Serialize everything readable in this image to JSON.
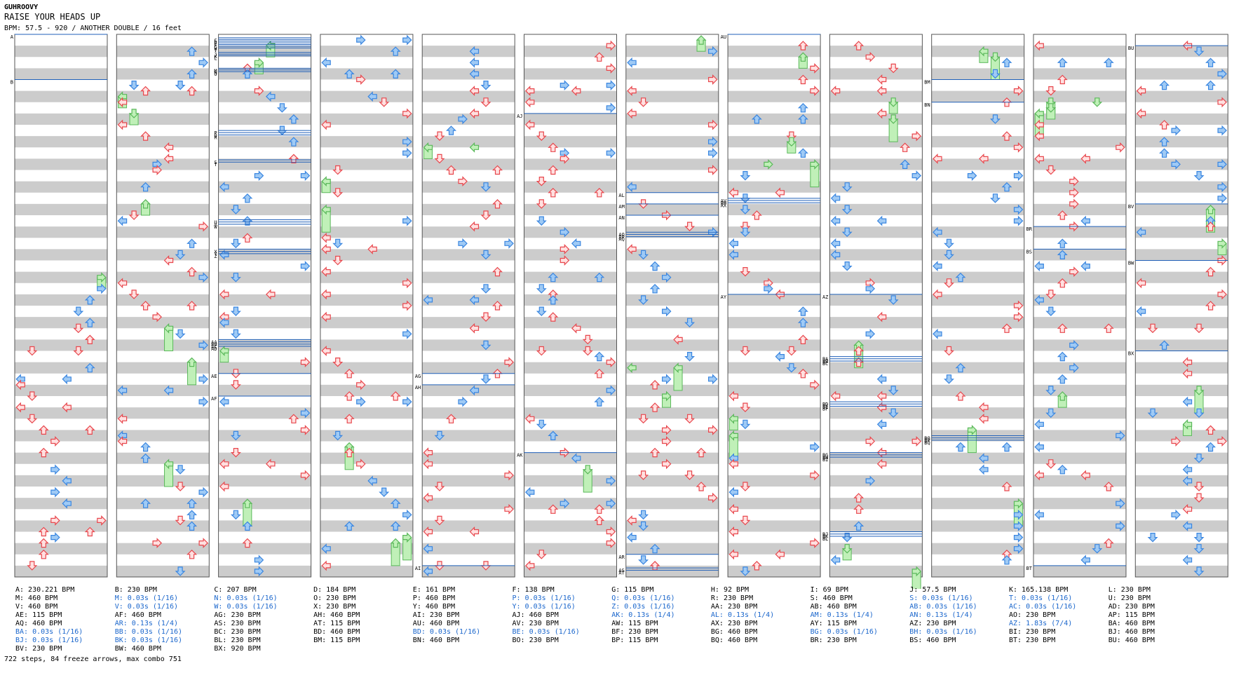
{
  "header": {
    "artist": "GUHROOVY",
    "song": "RAISE YOUR HEADS UP",
    "meta": "BPM: 57.5 - 920 / ANOTHER DOUBLE / 16 feet"
  },
  "colors": {
    "panel_bg": "#ffffff",
    "stripe": "#cccccc",
    "border": "#555555",
    "red": "#e8474d",
    "red_fill": "#ffe0e0",
    "blue": "#3a86e0",
    "blue_fill": "#9fcaf5",
    "pink": "#c060c0",
    "pink_fill": "#f8c4f8",
    "green": "#5ab85a",
    "green_fill": "#c0f0b8",
    "bpm_line": "#1f5fb8",
    "stop_text": "#1a66cc"
  },
  "icons": {
    "arrow_left": "left-arrow-icon",
    "arrow_down": "down-arrow-icon",
    "arrow_up": "up-arrow-icon",
    "arrow_right": "right-arrow-icon",
    "freeze": "freeze-arrow-icon"
  },
  "chart": {
    "columns": 12,
    "measures_per_column": 12,
    "seed": 751,
    "markers": [
      {
        "label": "A",
        "column": 0,
        "beat": 0
      },
      {
        "label": "B",
        "column": 0,
        "beat": 4
      },
      {
        "label": "C",
        "column": 2,
        "beat": 0.3
      },
      {
        "label": "D",
        "column": 2,
        "beat": 0.45
      },
      {
        "label": "E",
        "column": 2,
        "beat": 0.6
      },
      {
        "label": "F",
        "column": 2,
        "beat": 0.75
      },
      {
        "label": "G",
        "column": 2,
        "beat": 0.9
      },
      {
        "label": "H",
        "column": 2,
        "beat": 1.05
      },
      {
        "label": "I",
        "column": 2,
        "beat": 1.2
      },
      {
        "label": "J",
        "column": 2,
        "beat": 1.6
      },
      {
        "label": "K",
        "column": 2,
        "beat": 1.75
      },
      {
        "label": "L",
        "column": 2,
        "beat": 1.9
      },
      {
        "label": "M",
        "column": 2,
        "beat": 3
      },
      {
        "label": "N",
        "column": 2,
        "beat": 3.15
      },
      {
        "label": "O",
        "column": 2,
        "beat": 3.3
      },
      {
        "label": "P",
        "column": 2,
        "beat": 8.5
      },
      {
        "label": "Q",
        "column": 2,
        "beat": 8.7
      },
      {
        "label": "R",
        "column": 2,
        "beat": 8.9
      },
      {
        "label": "S",
        "column": 2,
        "beat": 11.1
      },
      {
        "label": "T",
        "column": 2,
        "beat": 11.3
      },
      {
        "label": "U",
        "column": 2,
        "beat": 16.4
      },
      {
        "label": "V",
        "column": 2,
        "beat": 16.6
      },
      {
        "label": "W",
        "column": 2,
        "beat": 16.8
      },
      {
        "label": "X",
        "column": 2,
        "beat": 19
      },
      {
        "label": "Y",
        "column": 2,
        "beat": 19.2
      },
      {
        "label": "Z",
        "column": 2,
        "beat": 19.4
      },
      {
        "label": "AA",
        "column": 2,
        "beat": 27
      },
      {
        "label": "AB",
        "column": 2,
        "beat": 27.2
      },
      {
        "label": "AC",
        "column": 2,
        "beat": 27.4
      },
      {
        "label": "AD",
        "column": 2,
        "beat": 27.6
      },
      {
        "label": "AE",
        "column": 2,
        "beat": 30
      },
      {
        "label": "AF",
        "column": 2,
        "beat": 32
      },
      {
        "label": "AG",
        "column": 4,
        "beat": 30
      },
      {
        "label": "AH",
        "column": 4,
        "beat": 31
      },
      {
        "label": "AI",
        "column": 4,
        "beat": 47
      },
      {
        "label": "AJ",
        "column": 5,
        "beat": 7
      },
      {
        "label": "AK",
        "column": 5,
        "beat": 37
      },
      {
        "label": "AL",
        "column": 6,
        "beat": 14
      },
      {
        "label": "AM",
        "column": 6,
        "beat": 15
      },
      {
        "label": "AN",
        "column": 6,
        "beat": 16
      },
      {
        "label": "AO",
        "column": 6,
        "beat": 17.5
      },
      {
        "label": "AP",
        "column": 6,
        "beat": 17.7
      },
      {
        "label": "AQ",
        "column": 6,
        "beat": 17.9
      },
      {
        "label": "AR",
        "column": 6,
        "beat": 46
      },
      {
        "label": "AS",
        "column": 6,
        "beat": 47.2
      },
      {
        "label": "AT",
        "column": 6,
        "beat": 47.4
      },
      {
        "label": "AU",
        "column": 7,
        "beat": 0
      },
      {
        "label": "AV",
        "column": 7,
        "beat": 14.5
      },
      {
        "label": "AW",
        "column": 7,
        "beat": 14.7
      },
      {
        "label": "AX",
        "column": 7,
        "beat": 14.9
      },
      {
        "label": "AY",
        "column": 7,
        "beat": 23
      },
      {
        "label": "AZ",
        "column": 8,
        "beat": 23
      },
      {
        "label": "BA",
        "column": 8,
        "beat": 28.5
      },
      {
        "label": "BB",
        "column": 8,
        "beat": 28.7
      },
      {
        "label": "BC",
        "column": 8,
        "beat": 28.9
      },
      {
        "label": "BD",
        "column": 8,
        "beat": 32.5
      },
      {
        "label": "BE",
        "column": 8,
        "beat": 32.7
      },
      {
        "label": "BF",
        "column": 8,
        "beat": 32.9
      },
      {
        "label": "BG",
        "column": 8,
        "beat": 37
      },
      {
        "label": "BH",
        "column": 8,
        "beat": 37.2
      },
      {
        "label": "BI",
        "column": 8,
        "beat": 37.4
      },
      {
        "label": "BJ",
        "column": 8,
        "beat": 44
      },
      {
        "label": "BK",
        "column": 8,
        "beat": 44.2
      },
      {
        "label": "BL",
        "column": 8,
        "beat": 44.4
      },
      {
        "label": "BM",
        "column": 9,
        "beat": 4
      },
      {
        "label": "BN",
        "column": 9,
        "beat": 6
      },
      {
        "label": "BO",
        "column": 9,
        "beat": 35.5
      },
      {
        "label": "BP",
        "column": 9,
        "beat": 35.7
      },
      {
        "label": "BQ",
        "column": 9,
        "beat": 35.9
      },
      {
        "label": "BR",
        "column": 10,
        "beat": 17
      },
      {
        "label": "BS",
        "column": 10,
        "beat": 19
      },
      {
        "label": "BT",
        "column": 10,
        "beat": 47
      },
      {
        "label": "BU",
        "column": 11,
        "beat": 1
      },
      {
        "label": "BV",
        "column": 11,
        "beat": 15
      },
      {
        "label": "BW",
        "column": 11,
        "beat": 20
      },
      {
        "label": "BX",
        "column": 11,
        "beat": 28
      }
    ]
  },
  "legend": [
    [
      "A: 230.221 BPM",
      "M: 460 BPM",
      "V: 460 BPM",
      "AE: 115 BPM",
      "AQ: 460 BPM",
      "BA: 0.03s (1/16)",
      "BJ: 0.03s (1/16)",
      "BV: 230 BPM"
    ],
    [
      "B: 230 BPM",
      "M: 0.03s (1/16)",
      "V: 0.03s (1/16)",
      "AF: 460 BPM",
      "AR: 0.13s (1/4)",
      "BB: 0.03s (1/16)",
      "BK: 0.03s (1/16)",
      "BW: 460 BPM"
    ],
    [
      "C: 207 BPM",
      "N: 0.03s (1/16)",
      "W: 0.03s (1/16)",
      "AG: 230 BPM",
      "AS: 230 BPM",
      "BC: 230 BPM",
      "BL: 230 BPM",
      "BX: 920 BPM"
    ],
    [
      "D: 184 BPM",
      "O: 230 BPM",
      "X: 230 BPM",
      "AH: 460 BPM",
      "AT: 115 BPM",
      "BD: 460 BPM",
      "BM: 115 BPM"
    ],
    [
      "E: 161 BPM",
      "P: 460 BPM",
      "Y: 460 BPM",
      "AI: 230 BPM",
      "AU: 460 BPM",
      "BD: 0.03s (1/16)",
      "BN: 460 BPM"
    ],
    [
      "F: 138 BPM",
      "P: 0.03s (1/16)",
      "Y: 0.03s (1/16)",
      "AJ: 460 BPM",
      "AV: 230 BPM",
      "BE: 0.03s (1/16)",
      "BO: 230 BPM"
    ],
    [
      "G: 115 BPM",
      "Q: 0.03s (1/16)",
      "Z: 0.03s (1/16)",
      "AK: 0.13s (1/4)",
      "AW: 115 BPM",
      "BF: 230 BPM",
      "BP: 115 BPM"
    ],
    [
      "H: 92 BPM",
      "R: 230 BPM",
      "AA: 230 BPM",
      "AL: 0.13s (1/4)",
      "AX: 230 BPM",
      "BG: 460 BPM",
      "BQ: 460 BPM"
    ],
    [
      "I: 69 BPM",
      "S: 460 BPM",
      "AB: 460 BPM",
      "AM: 0.13s (1/4)",
      "AY: 115 BPM",
      "BG: 0.03s (1/16)",
      "BR: 230 BPM"
    ],
    [
      "J: 57.5 BPM",
      "S: 0.03s (1/16)",
      "AB: 0.03s (1/16)",
      "AN: 0.13s (1/4)",
      "AZ: 230 BPM",
      "BH: 0.03s (1/16)",
      "BS: 460 BPM"
    ],
    [
      "K: 165.138 BPM",
      "T: 0.03s (1/16)",
      "AC: 0.03s (1/16)",
      "AO: 230 BPM",
      "AZ: 1.83s (7/4)",
      "BI: 230 BPM",
      "BT: 230 BPM"
    ],
    [
      "L: 230 BPM",
      "U: 230 BPM",
      "AD: 230 BPM",
      "AP: 115 BPM",
      "BA: 460 BPM",
      "BJ: 460 BPM",
      "BU: 460 BPM"
    ]
  ],
  "summary": "722 steps, 84 freeze arrows, max combo 751"
}
